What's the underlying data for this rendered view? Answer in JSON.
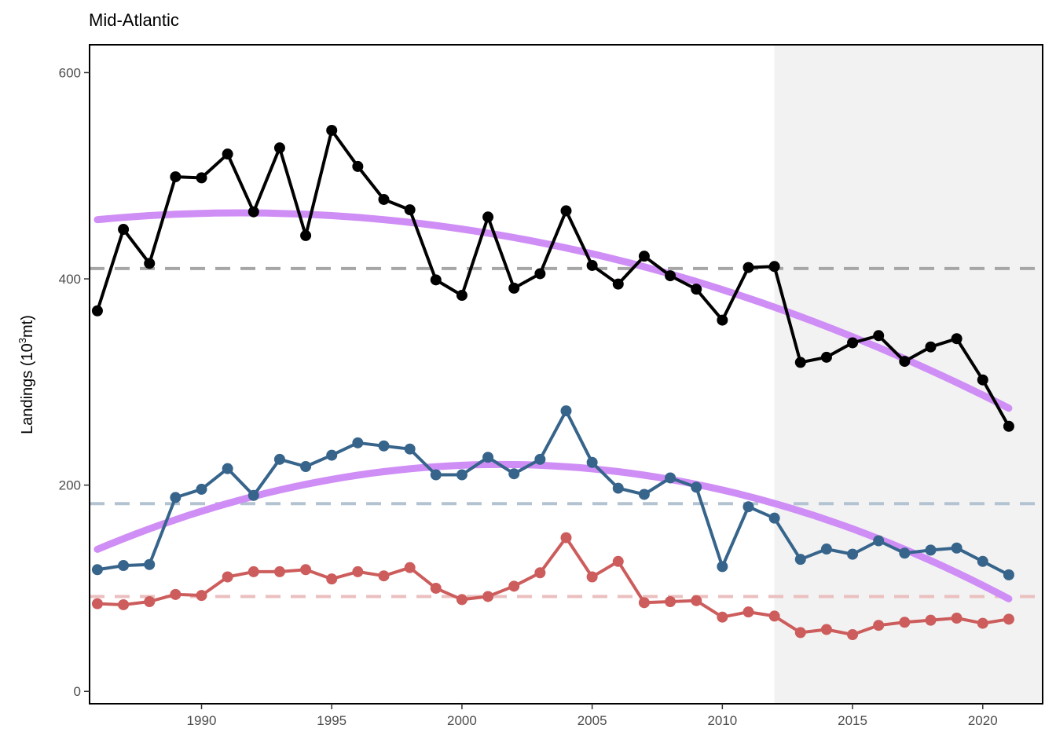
{
  "chart_data": {
    "type": "line",
    "title": "Mid-Atlantic",
    "ylabel": "Landings (10",
    "ylabel_sup": "3",
    "ylabel_tail": "mt)",
    "xlabel": "",
    "xlim": [
      1985.7,
      2022.3
    ],
    "ylim": [
      -12,
      627
    ],
    "x_ticks": [
      1990,
      1995,
      2000,
      2005,
      2010,
      2015,
      2020
    ],
    "y_ticks": [
      0,
      200,
      400,
      600
    ],
    "grid": false,
    "shaded_region": {
      "x_start": 2012,
      "x_end": 2022.3,
      "color": "#f2f2f2"
    },
    "x": [
      1986,
      1987,
      1988,
      1989,
      1990,
      1991,
      1992,
      1993,
      1994,
      1995,
      1996,
      1997,
      1998,
      1999,
      2000,
      2001,
      2002,
      2003,
      2004,
      2005,
      2006,
      2007,
      2008,
      2009,
      2010,
      2011,
      2012,
      2013,
      2014,
      2015,
      2016,
      2017,
      2018,
      2019,
      2020,
      2021
    ],
    "series": [
      {
        "color": "#000000",
        "mean": 410,
        "mean_color": "#a6a6a6",
        "values": [
          369,
          448,
          415,
          499,
          498,
          521,
          465,
          527,
          442,
          544,
          509,
          477,
          467,
          399,
          384,
          460,
          391,
          405,
          466,
          413,
          395,
          422,
          403,
          390,
          360,
          411,
          412,
          319,
          324,
          338,
          345,
          320,
          334,
          342,
          302,
          257
        ],
        "trend": {
          "color": "#cf8ef5",
          "a": 464,
          "b": 1991.5,
          "c": 0.2176
        }
      },
      {
        "color": "#36648b",
        "mean": 182,
        "mean_color": "#b3c3d1",
        "values": [
          118,
          122,
          123,
          188,
          196,
          216,
          190,
          225,
          218,
          229,
          241,
          238,
          235,
          210,
          210,
          227,
          211,
          225,
          272,
          222,
          197,
          191,
          207,
          198,
          121,
          179,
          168,
          128,
          138,
          133,
          146,
          134,
          137,
          139,
          126,
          113
        ],
        "trend": {
          "color": "#cf8ef5",
          "a": 220,
          "b": 2001.5,
          "c": 0.3425
        }
      },
      {
        "color": "#cd5c5c",
        "mean": 92,
        "mean_color": "#ebbfbf",
        "values": [
          85,
          84,
          87,
          94,
          93,
          111,
          116,
          116,
          118,
          109,
          116,
          112,
          120,
          100,
          89,
          92,
          102,
          115,
          149,
          111,
          126,
          86,
          87,
          88,
          72,
          77,
          73,
          57,
          60,
          55,
          64,
          67,
          69,
          71,
          66,
          70
        ]
      }
    ]
  }
}
